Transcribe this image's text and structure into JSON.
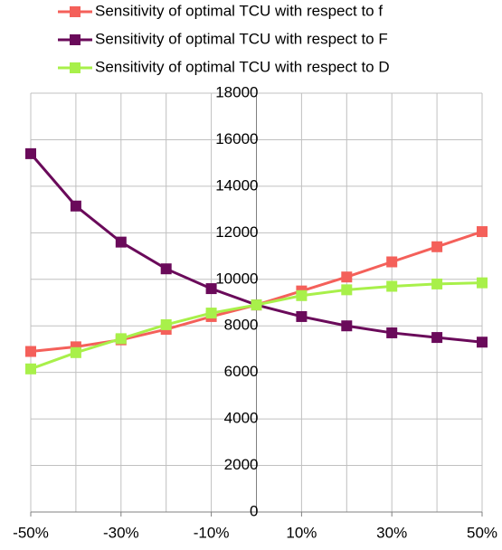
{
  "chart_data": {
    "type": "line",
    "x": [
      -50,
      -40,
      -30,
      -20,
      -10,
      0,
      10,
      20,
      30,
      40,
      50
    ],
    "series": [
      {
        "name": "Sensitivity of optimal TCU with respect to f",
        "color": "#f4605a",
        "values": [
          6900,
          7100,
          7400,
          7850,
          8400,
          8900,
          9500,
          10100,
          10750,
          11400,
          12050
        ]
      },
      {
        "name": "Sensitivity of optimal TCU with respect to F",
        "color": "#6a0a5a",
        "values": [
          15400,
          13150,
          11600,
          10450,
          9600,
          8900,
          8400,
          8000,
          7700,
          7500,
          7300
        ]
      },
      {
        "name": "Sensitivity of optimal TCU with respect to D",
        "color": "#a8f04a",
        "values": [
          6150,
          6850,
          7450,
          8050,
          8550,
          8900,
          9300,
          9550,
          9700,
          9800,
          9850
        ]
      }
    ],
    "xlim": [
      -50,
      50
    ],
    "xticks": [
      {
        "value": -50,
        "label": "-50%"
      },
      {
        "value": -30,
        "label": "-30%"
      },
      {
        "value": -10,
        "label": "-10%"
      },
      {
        "value": 10,
        "label": "10%"
      },
      {
        "value": 30,
        "label": "30%"
      },
      {
        "value": 50,
        "label": "50%"
      }
    ],
    "ylim": [
      0,
      18000
    ],
    "yticks": [
      0,
      2000,
      4000,
      6000,
      8000,
      10000,
      12000,
      14000,
      16000,
      18000
    ],
    "grid": true
  }
}
